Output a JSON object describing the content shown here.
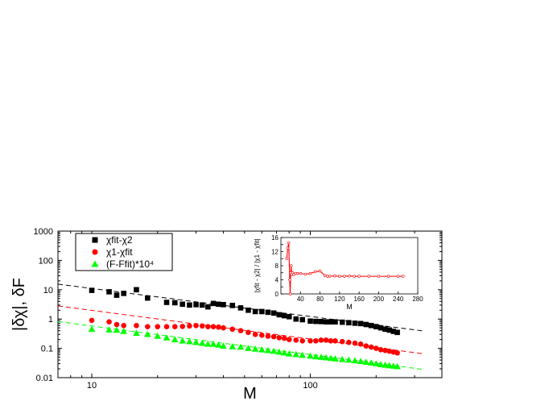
{
  "chart_data": [
    {
      "type": "scatter",
      "xscale": "log",
      "yscale": "log",
      "xlim": [
        7,
        400
      ],
      "ylim": [
        0.01,
        1000
      ],
      "xticks": [
        10,
        100
      ],
      "xtick_labels": [
        "10",
        "100"
      ],
      "yticks": [
        0.01,
        0.1,
        1,
        10,
        100,
        1000
      ],
      "ytick_labels": [
        "0.01",
        "0.1",
        "1",
        "10",
        "100",
        "1000"
      ],
      "xlabel": "M",
      "ylabel": "|δχ|, δF",
      "legend_position": "top-left",
      "series": [
        {
          "name": "χfit-χ2",
          "color": "#000000",
          "marker": "square",
          "x": [
            10,
            12,
            13,
            14,
            16,
            18,
            22,
            24,
            26,
            28,
            30,
            32,
            34,
            36,
            38,
            40,
            44,
            48,
            52,
            56,
            60,
            64,
            68,
            72,
            76,
            80,
            86,
            92,
            100,
            106,
            112,
            118,
            124,
            130,
            140,
            150,
            160,
            170,
            180,
            190,
            200,
            210,
            220,
            230,
            240,
            250
          ],
          "y": [
            9.5,
            8.5,
            6.5,
            7.5,
            10,
            5.2,
            3.7,
            3.6,
            3.2,
            3.0,
            3.1,
            3.0,
            2.6,
            3.4,
            3.2,
            3.1,
            2.9,
            2.4,
            2.0,
            1.8,
            1.8,
            1.7,
            1.6,
            1.4,
            1.3,
            1.2,
            1.0,
            0.95,
            0.85,
            0.83,
            0.82,
            0.8,
            0.8,
            0.8,
            0.78,
            0.75,
            0.72,
            0.7,
            0.65,
            0.6,
            0.55,
            0.5,
            0.45,
            0.42,
            0.38,
            0.35
          ]
        },
        {
          "name": "χ1-χfit",
          "color": "#ff0000",
          "marker": "circle",
          "x": [
            10,
            12,
            13,
            14,
            16,
            18,
            20,
            22,
            24,
            26,
            28,
            30,
            32,
            34,
            36,
            38,
            40,
            44,
            48,
            52,
            56,
            60,
            64,
            68,
            72,
            76,
            80,
            86,
            92,
            100,
            106,
            112,
            118,
            124,
            130,
            140,
            150,
            160,
            170,
            180,
            190,
            200,
            210,
            220,
            230,
            240,
            250
          ],
          "y": [
            0.9,
            0.8,
            0.65,
            0.6,
            0.6,
            0.55,
            0.55,
            0.55,
            0.55,
            0.56,
            0.58,
            0.6,
            0.58,
            0.55,
            0.55,
            0.53,
            0.5,
            0.45,
            0.4,
            0.35,
            0.3,
            0.28,
            0.26,
            0.25,
            0.23,
            0.22,
            0.2,
            0.19,
            0.18,
            0.18,
            0.18,
            0.19,
            0.19,
            0.18,
            0.18,
            0.17,
            0.16,
            0.15,
            0.14,
            0.12,
            0.11,
            0.1,
            0.09,
            0.085,
            0.08,
            0.075,
            0.07
          ]
        },
        {
          "name": "(F-Ffit)*10⁴",
          "color": "#00ff00",
          "marker": "triangle",
          "x": [
            10,
            12,
            13,
            14,
            16,
            18,
            20,
            22,
            24,
            26,
            28,
            30,
            32,
            34,
            36,
            38,
            40,
            44,
            48,
            52,
            56,
            60,
            64,
            68,
            72,
            76,
            80,
            86,
            92,
            100,
            106,
            112,
            118,
            124,
            130,
            140,
            150,
            160,
            170,
            180,
            190,
            200,
            210,
            220,
            230,
            240,
            250
          ],
          "y": [
            0.45,
            0.43,
            0.42,
            0.38,
            0.33,
            0.3,
            0.26,
            0.23,
            0.2,
            0.18,
            0.17,
            0.16,
            0.15,
            0.14,
            0.14,
            0.13,
            0.12,
            0.115,
            0.11,
            0.1,
            0.095,
            0.09,
            0.085,
            0.08,
            0.075,
            0.07,
            0.065,
            0.062,
            0.058,
            0.055,
            0.052,
            0.05,
            0.048,
            0.046,
            0.044,
            0.042,
            0.04,
            0.038,
            0.036,
            0.034,
            0.032,
            0.03,
            0.028,
            0.027,
            0.026,
            0.025,
            0.024
          ]
        }
      ],
      "fit_lines": [
        {
          "color": "#000000",
          "x": [
            7,
            330
          ],
          "y": [
            15.5,
            0.39
          ]
        },
        {
          "color": "#ff0000",
          "x": [
            7,
            330
          ],
          "y": [
            2.8,
            0.065
          ]
        },
        {
          "color": "#00ff00",
          "x": [
            7,
            330
          ],
          "y": [
            0.82,
            0.019
          ]
        }
      ],
      "inset": {
        "type": "line",
        "color": "#ff0000",
        "marker": "open-circle",
        "xlim": [
          0,
          280
        ],
        "ylim": [
          0,
          16
        ],
        "xticks": [
          40,
          80,
          120,
          160,
          200,
          240,
          280
        ],
        "yticks": [
          0,
          2,
          4,
          6,
          8,
          10,
          12,
          14,
          16
        ],
        "xlabel": "M",
        "ylabel": "|χfit - χ2| / |χ1 - χfit|",
        "x": [
          12,
          14,
          16,
          18,
          19,
          20,
          21,
          22,
          24,
          26,
          30,
          34,
          40,
          50,
          60,
          70,
          80,
          90,
          95,
          100,
          110,
          120,
          130,
          140,
          150,
          160,
          180,
          200,
          220,
          240,
          250
        ],
        "y": [
          10,
          13,
          14.5,
          4,
          0,
          6,
          8,
          5.5,
          6,
          5.5,
          5.8,
          5.8,
          5.8,
          5.6,
          5.8,
          6.3,
          6.5,
          5.2,
          5,
          5,
          5.1,
          5,
          5,
          5.1,
          5,
          5,
          5,
          5,
          5,
          5,
          5
        ]
      }
    }
  ]
}
